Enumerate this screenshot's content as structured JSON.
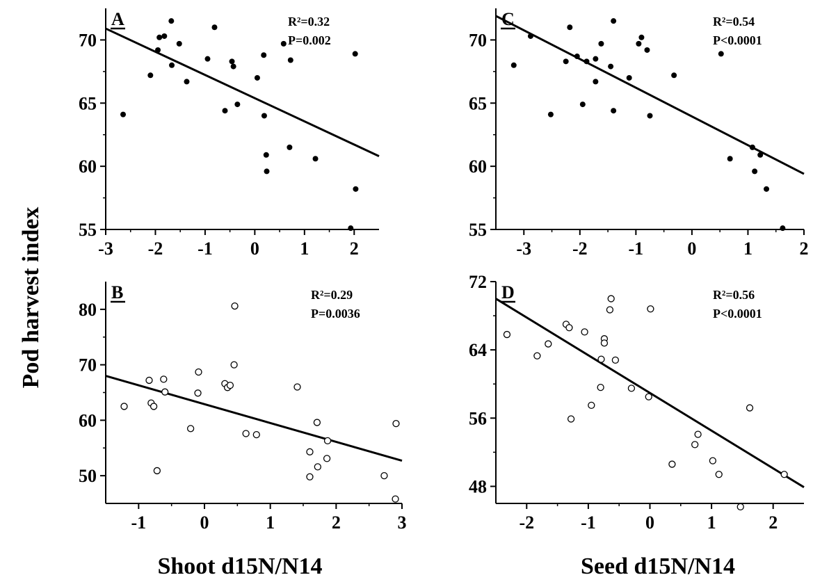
{
  "figure": {
    "y_axis_title": "Pod harvest index",
    "x_axis_titles": [
      "Shoot d15N/N14",
      "Seed d15N/N14"
    ]
  },
  "chart_data": [
    {
      "type": "scatter",
      "panel": "A",
      "stats": [
        "R²=0.32",
        "P=0.002"
      ],
      "marker": "filled",
      "xlim": [
        -3,
        2.5
      ],
      "ylim": [
        55,
        72.5
      ],
      "xticks": [
        -3,
        -2,
        -1,
        0,
        1,
        2
      ],
      "xtick_labels": [
        "-3",
        "-2",
        "-1",
        "0",
        "1",
        "2"
      ],
      "yticks": [
        55,
        60,
        65,
        70
      ],
      "ytick_labels": [
        "55",
        "60",
        "65",
        "70"
      ],
      "trendline": [
        [
          -3,
          70.9
        ],
        [
          2.5,
          60.8
        ]
      ],
      "points": [
        [
          -2.65,
          64.1
        ],
        [
          -2.1,
          67.2
        ],
        [
          -1.95,
          69.2
        ],
        [
          -1.92,
          70.2
        ],
        [
          -1.82,
          70.3
        ],
        [
          -1.68,
          71.5
        ],
        [
          -1.67,
          68.0
        ],
        [
          -1.52,
          69.7
        ],
        [
          -1.37,
          66.7
        ],
        [
          -0.95,
          68.5
        ],
        [
          -0.81,
          71.0
        ],
        [
          -0.6,
          64.4
        ],
        [
          -0.46,
          68.3
        ],
        [
          -0.43,
          67.9
        ],
        [
          -0.35,
          64.9
        ],
        [
          0.05,
          67.0
        ],
        [
          0.18,
          68.8
        ],
        [
          0.19,
          64.0
        ],
        [
          0.23,
          60.9
        ],
        [
          0.24,
          59.6
        ],
        [
          0.58,
          69.7
        ],
        [
          0.7,
          61.5
        ],
        [
          0.72,
          68.4
        ],
        [
          1.22,
          60.6
        ],
        [
          1.93,
          55.1
        ],
        [
          2.02,
          68.9
        ],
        [
          2.03,
          58.2
        ]
      ],
      "grid": false
    },
    {
      "type": "scatter",
      "panel": "B",
      "stats": [
        "R²=0.29",
        "P=0.0036"
      ],
      "marker": "open",
      "xlim": [
        -1.5,
        3
      ],
      "ylim": [
        45,
        85
      ],
      "xticks": [
        -1,
        0,
        1,
        2,
        3
      ],
      "xtick_labels": [
        "-1",
        "0",
        "1",
        "2",
        "3"
      ],
      "yticks": [
        50,
        60,
        70,
        80
      ],
      "ytick_labels": [
        "50",
        "60",
        "70",
        "80"
      ],
      "trendline": [
        [
          -1.5,
          68.0
        ],
        [
          3,
          52.7
        ]
      ],
      "points": [
        [
          -1.22,
          62.5
        ],
        [
          -0.84,
          67.2
        ],
        [
          -0.81,
          63.1
        ],
        [
          -0.77,
          62.5
        ],
        [
          -0.72,
          50.9
        ],
        [
          -0.62,
          67.4
        ],
        [
          -0.6,
          65.1
        ],
        [
          -0.21,
          58.5
        ],
        [
          -0.09,
          68.7
        ],
        [
          -0.1,
          64.9
        ],
        [
          0.31,
          66.6
        ],
        [
          0.35,
          65.9
        ],
        [
          0.39,
          66.3
        ],
        [
          0.45,
          70.0
        ],
        [
          0.46,
          80.6
        ],
        [
          0.63,
          57.6
        ],
        [
          0.79,
          57.4
        ],
        [
          1.41,
          66.0
        ],
        [
          1.6,
          54.3
        ],
        [
          1.6,
          49.8
        ],
        [
          1.71,
          59.6
        ],
        [
          1.72,
          51.6
        ],
        [
          1.86,
          53.1
        ],
        [
          1.87,
          56.3
        ],
        [
          2.73,
          50.0
        ],
        [
          2.91,
          59.4
        ],
        [
          2.9,
          45.8
        ]
      ],
      "grid": false
    },
    {
      "type": "scatter",
      "panel": "C",
      "stats": [
        "R²=0.54",
        "P<0.0001"
      ],
      "marker": "filled",
      "xlim": [
        -3.5,
        2
      ],
      "ylim": [
        55,
        72.5
      ],
      "xticks": [
        -3,
        -2,
        -1,
        0,
        1,
        2
      ],
      "xtick_labels": [
        "-3",
        "-2",
        "-1",
        "0",
        "1",
        "2"
      ],
      "yticks": [
        55,
        60,
        65,
        70
      ],
      "ytick_labels": [
        "55",
        "60",
        "65",
        "70"
      ],
      "trendline": [
        [
          -3.5,
          71.9
        ],
        [
          2,
          59.4
        ]
      ],
      "points": [
        [
          -3.18,
          68.0
        ],
        [
          -2.88,
          70.3
        ],
        [
          -2.52,
          64.1
        ],
        [
          -2.18,
          71.0
        ],
        [
          -2.25,
          68.3
        ],
        [
          -2.05,
          68.7
        ],
        [
          -1.95,
          64.9
        ],
        [
          -1.88,
          68.3
        ],
        [
          -1.72,
          66.7
        ],
        [
          -1.72,
          68.5
        ],
        [
          -1.62,
          69.7
        ],
        [
          -1.45,
          67.9
        ],
        [
          -1.4,
          71.5
        ],
        [
          -1.4,
          64.4
        ],
        [
          -1.12,
          67.0
        ],
        [
          -0.95,
          69.7
        ],
        [
          -0.9,
          70.2
        ],
        [
          -0.8,
          69.2
        ],
        [
          -0.75,
          64.0
        ],
        [
          -0.32,
          67.2
        ],
        [
          0.52,
          68.9
        ],
        [
          0.68,
          60.6
        ],
        [
          1.08,
          61.5
        ],
        [
          1.12,
          59.6
        ],
        [
          1.22,
          60.9
        ],
        [
          1.33,
          58.2
        ],
        [
          1.62,
          55.1
        ]
      ],
      "grid": false
    },
    {
      "type": "scatter",
      "panel": "D",
      "stats": [
        "R²=0.56",
        "P<0.0001"
      ],
      "marker": "open",
      "xlim": [
        -2.5,
        2.5
      ],
      "ylim": [
        46,
        72
      ],
      "xticks": [
        -2,
        -1,
        0,
        1,
        2
      ],
      "xtick_labels": [
        "-2",
        "-1",
        "0",
        "1",
        "2"
      ],
      "yticks": [
        48,
        56,
        64,
        72
      ],
      "ytick_labels": [
        "48",
        "56",
        "64",
        "72"
      ],
      "trendline": [
        [
          -2.5,
          70.0
        ],
        [
          2.5,
          47.9
        ]
      ],
      "points": [
        [
          -2.32,
          65.8
        ],
        [
          -1.83,
          63.3
        ],
        [
          -1.65,
          64.7
        ],
        [
          -1.36,
          67.0
        ],
        [
          -1.31,
          66.6
        ],
        [
          -1.28,
          55.9
        ],
        [
          -1.06,
          66.1
        ],
        [
          -0.95,
          57.5
        ],
        [
          -0.8,
          59.6
        ],
        [
          -0.79,
          62.9
        ],
        [
          -0.74,
          65.3
        ],
        [
          -0.74,
          64.8
        ],
        [
          -0.65,
          68.7
        ],
        [
          -0.63,
          70.0
        ],
        [
          -0.56,
          62.8
        ],
        [
          -0.3,
          59.5
        ],
        [
          -0.02,
          58.5
        ],
        [
          0.01,
          68.8
        ],
        [
          0.36,
          50.6
        ],
        [
          0.73,
          52.9
        ],
        [
          0.78,
          54.1
        ],
        [
          1.02,
          51.0
        ],
        [
          1.12,
          49.4
        ],
        [
          1.47,
          45.6
        ],
        [
          1.62,
          57.2
        ],
        [
          2.18,
          49.4
        ]
      ],
      "grid": false
    }
  ]
}
